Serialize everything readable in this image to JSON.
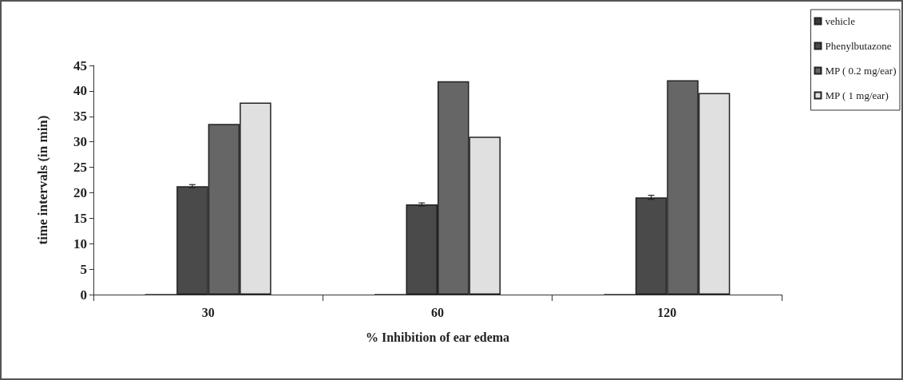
{
  "chart_data": {
    "type": "bar",
    "xlabel": "% Inhibition of ear edema",
    "ylabel": "time intervals (in min)",
    "categories": [
      "30",
      "60",
      "120"
    ],
    "series": [
      {
        "name": "vehicle",
        "color": "#3a3a3a",
        "values": [
          0,
          0,
          0
        ]
      },
      {
        "name": "Phenylbutazone",
        "color": "#4a4a4a",
        "values": [
          21.3,
          17.7,
          19.1
        ],
        "errors": [
          0.3,
          0.3,
          0.4
        ]
      },
      {
        "name": "MP ( 0.2 mg/ear)",
        "color": "#666666",
        "values": [
          33.5,
          41.9,
          42.1
        ]
      },
      {
        "name": "MP ( 1 mg/ear)",
        "color": "#e0e0e0",
        "values": [
          37.7,
          31.0,
          39.6
        ]
      }
    ],
    "ylim": [
      0,
      45
    ],
    "yticks": [
      0,
      5,
      10,
      15,
      20,
      25,
      30,
      35,
      40,
      45
    ],
    "grid": false,
    "legend": "top right"
  }
}
